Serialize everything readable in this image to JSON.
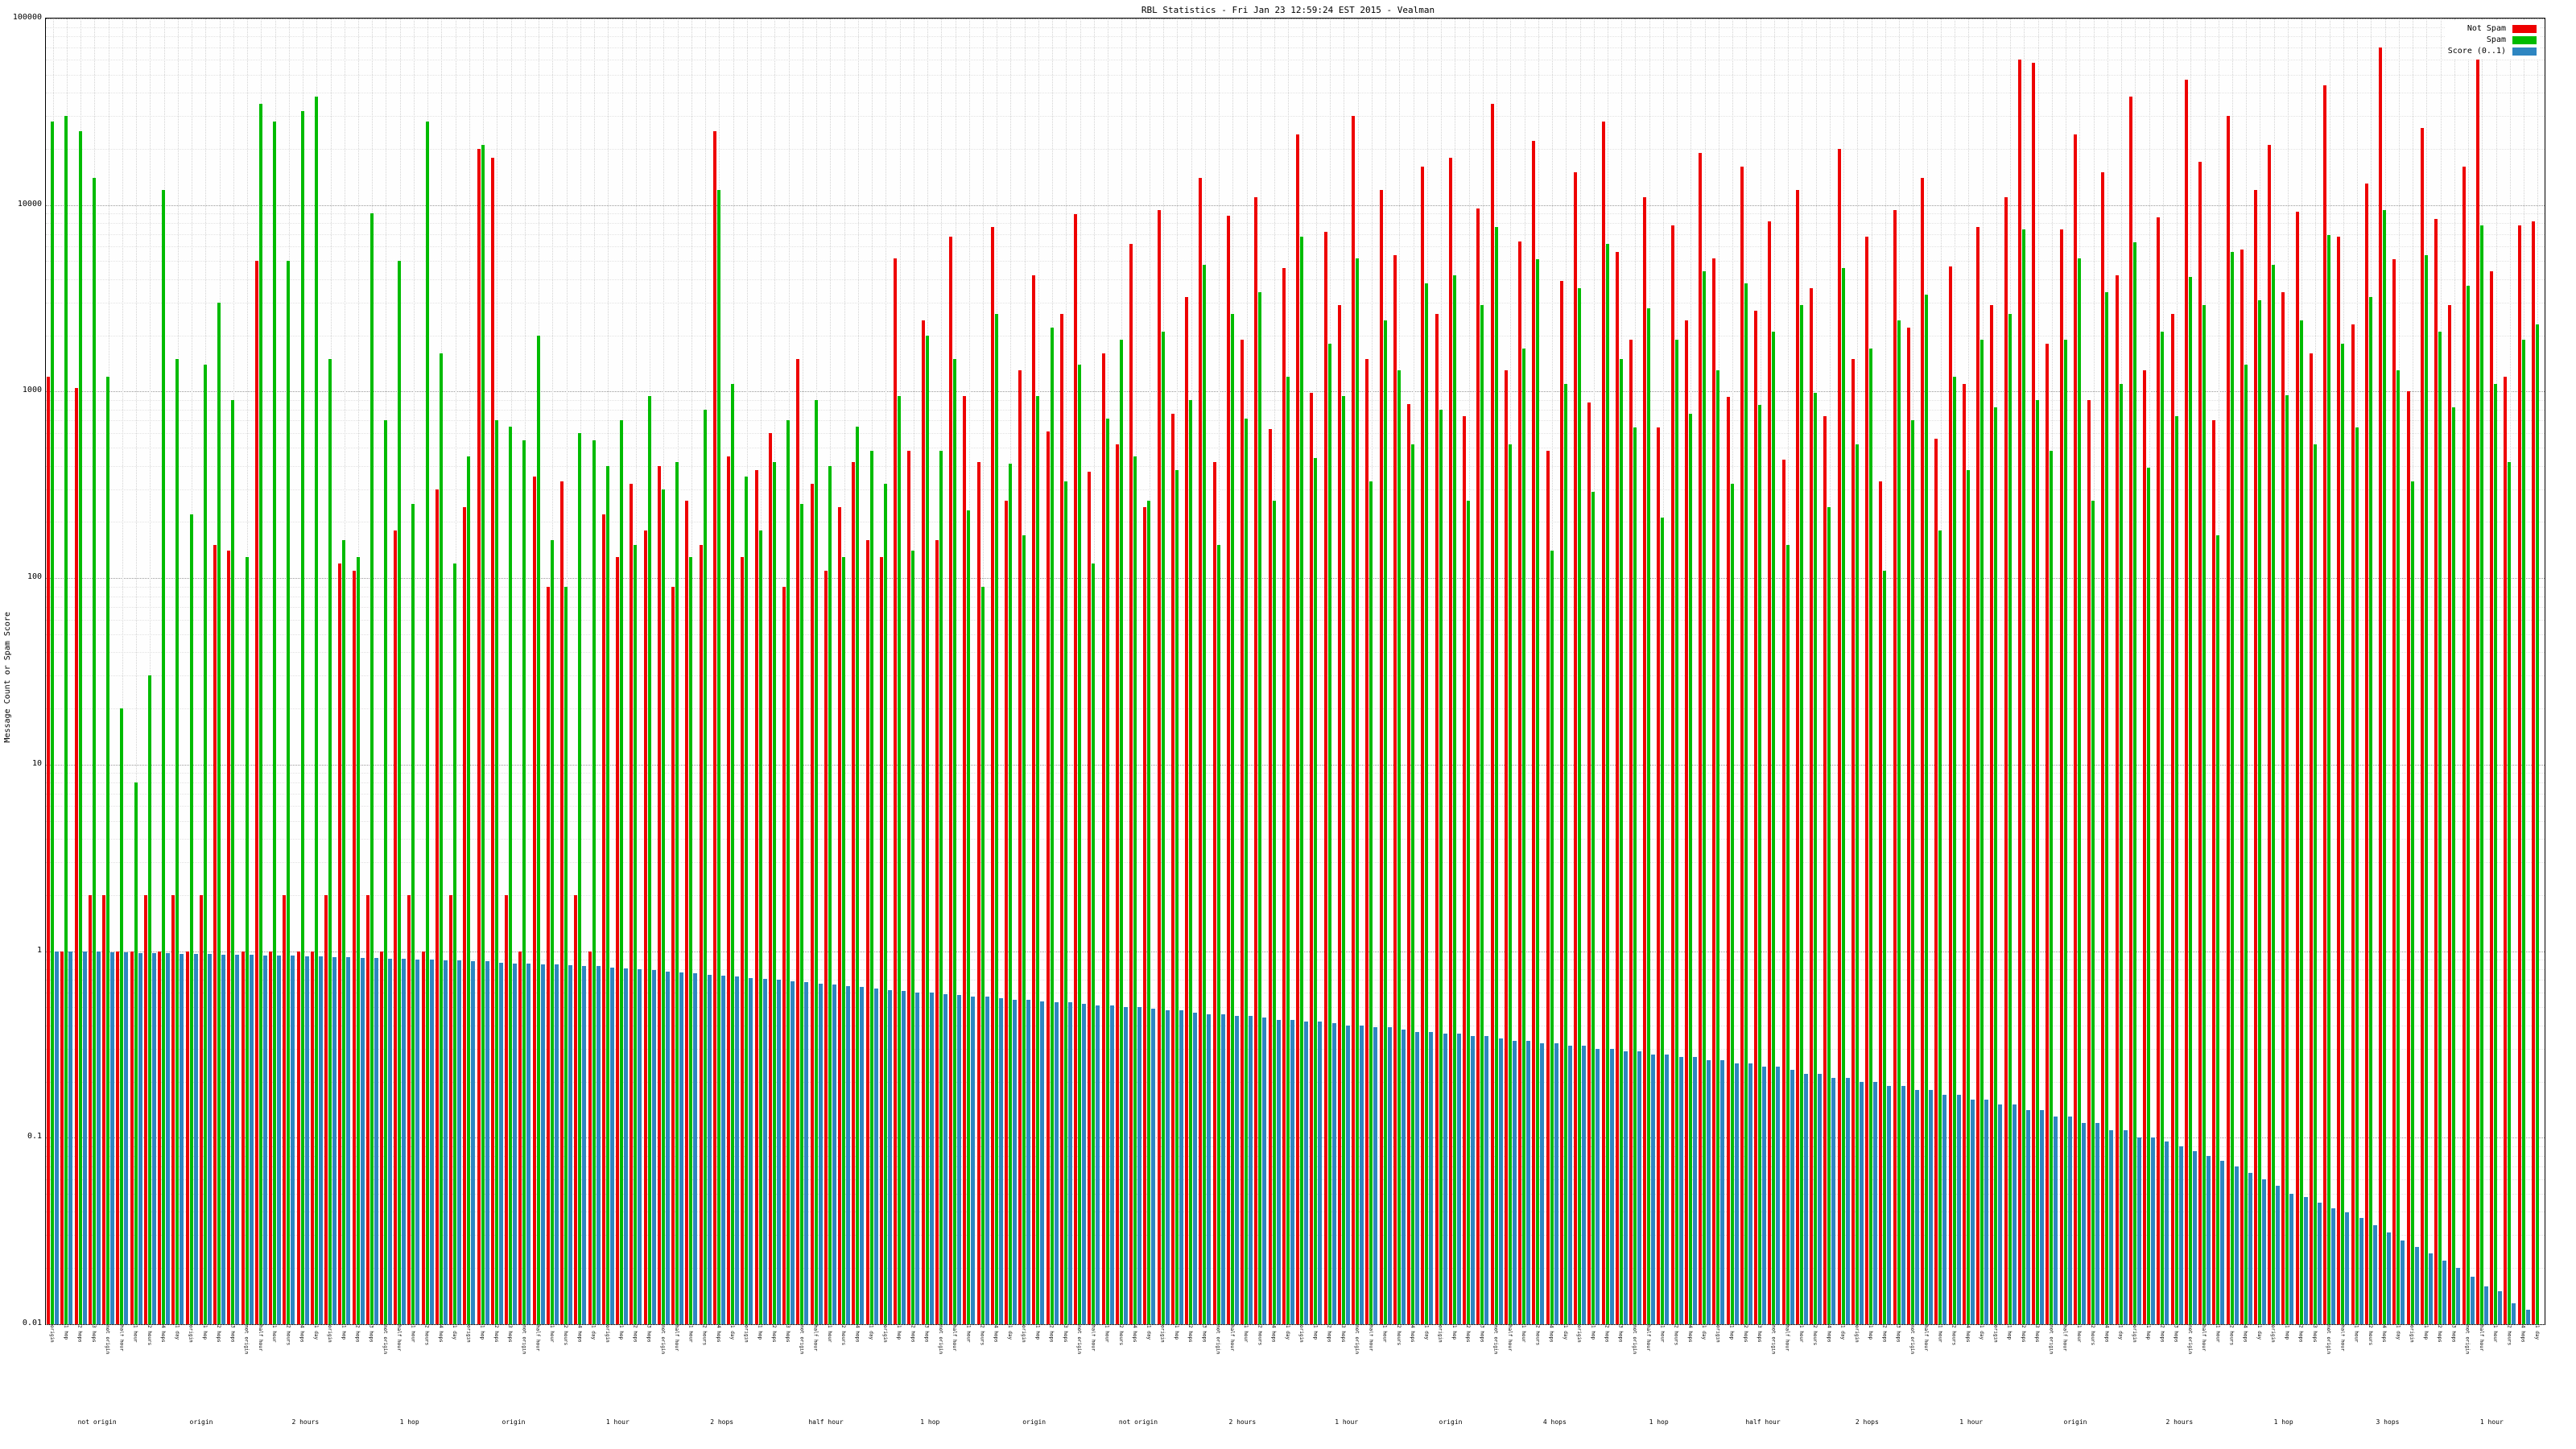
{
  "title": "RBL Statistics - Fri Jan 23 12:59:24 EST 2015 - Vealman",
  "y_axis": {
    "label": "Message Count or Spam Score",
    "ticks": [
      "100000",
      "10000",
      "1000",
      "100",
      "10",
      "1",
      "0.1",
      "0.01"
    ]
  },
  "legend": {
    "items": [
      {
        "label": "Not Spam",
        "color": "#ee0000"
      },
      {
        "label": "Spam",
        "color": "#00bb00"
      },
      {
        "label": "Score (0..1)",
        "color": "#2e86c1"
      }
    ]
  },
  "chart_data": {
    "type": "bar",
    "yscale": "log",
    "ylim": [
      0.01,
      100000
    ],
    "grid": true,
    "legend_position": "top-right",
    "title": "RBL Statistics - Fri Jan 23 12:59:24 EST 2015 - Vealman",
    "xlabel": "",
    "ylabel": "Message Count or Spam Score",
    "categories": [
      "origin",
      "1 hop",
      "2 hops",
      "3 hops",
      "not origin",
      "half hour",
      "1 hour",
      "2 hours",
      "4 hops",
      "1 day",
      "origin",
      "1 hop",
      "2 hops",
      "3 hops",
      "not origin",
      "half hour",
      "1 hour",
      "2 hours",
      "4 hops",
      "1 day",
      "origin",
      "1 hop",
      "2 hops",
      "3 hops",
      "not origin",
      "half hour",
      "1 hour",
      "2 hours",
      "4 hops",
      "1 day",
      "origin",
      "1 hop",
      "2 hops",
      "3 hops",
      "not origin",
      "half hour",
      "1 hour",
      "2 hours",
      "4 hops",
      "1 day",
      "origin",
      "1 hop",
      "2 hops",
      "3 hops",
      "not origin",
      "half hour",
      "1 hour",
      "2 hours",
      "4 hops",
      "1 day",
      "origin",
      "1 hop",
      "2 hops",
      "3 hops",
      "not origin",
      "half hour",
      "1 hour",
      "2 hours",
      "4 hops",
      "1 day",
      "origin",
      "1 hop",
      "2 hops",
      "3 hops",
      "not origin",
      "half hour",
      "1 hour",
      "2 hours",
      "4 hops",
      "1 day",
      "origin",
      "1 hop",
      "2 hops",
      "3 hops",
      "not origin",
      "half hour",
      "1 hour",
      "2 hours",
      "4 hops",
      "1 day",
      "origin",
      "1 hop",
      "2 hops",
      "3 hops",
      "not origin",
      "half hour",
      "1 hour",
      "2 hours",
      "4 hops",
      "1 day",
      "origin",
      "1 hop",
      "2 hops",
      "3 hops",
      "not origin",
      "half hour",
      "1 hour",
      "2 hours",
      "4 hops",
      "1 day",
      "origin",
      "1 hop",
      "2 hops",
      "3 hops",
      "not origin",
      "half hour",
      "1 hour",
      "2 hours",
      "4 hops",
      "1 day",
      "origin",
      "1 hop",
      "2 hops",
      "3 hops",
      "not origin",
      "half hour",
      "1 hour",
      "2 hours",
      "4 hops",
      "1 day",
      "origin",
      "1 hop",
      "2 hops",
      "3 hops",
      "not origin",
      "half hour",
      "1 hour",
      "2 hours",
      "4 hops",
      "1 day",
      "origin",
      "1 hop",
      "2 hops",
      "3 hops",
      "not origin",
      "half hour",
      "1 hour",
      "2 hours",
      "4 hops",
      "1 day",
      "origin",
      "1 hop",
      "2 hops",
      "3 hops",
      "not origin",
      "half hour",
      "1 hour",
      "2 hours",
      "4 hops",
      "1 day",
      "origin",
      "1 hop",
      "2 hops",
      "3 hops",
      "not origin",
      "half hour",
      "1 hour",
      "2 hours",
      "4 hops",
      "1 day",
      "origin",
      "1 hop",
      "2 hops",
      "3 hops",
      "not origin",
      "half hour",
      "1 hour",
      "2 hours",
      "4 hops",
      "1 day",
      "origin",
      "1 hop",
      "2 hops",
      "3 hops",
      "not origin",
      "half hour",
      "1 hour",
      "2 hours",
      "4 hops",
      "1 day"
    ],
    "footer_labels": [
      "not origin",
      "origin",
      "2 hours",
      "1 hop",
      "origin",
      "1 hour",
      "2 hops",
      "half hour",
      "1 hop",
      "origin",
      "not origin",
      "2 hours",
      "1 hour",
      "origin",
      "4 hops",
      "1 hop",
      "half hour",
      "2 hops",
      "1 hour",
      "origin",
      "2 hours",
      "1 hop",
      "3 hops",
      "1 hour"
    ],
    "series": [
      {
        "name": "Not Spam",
        "color": "#ee0000",
        "values": [
          1200,
          1,
          1050,
          2,
          2,
          1,
          1,
          2,
          1,
          2,
          1,
          2,
          150,
          140,
          1,
          5000,
          1,
          2,
          1,
          1,
          2,
          120,
          110,
          2,
          1,
          180,
          2,
          1,
          300,
          2,
          240,
          20000,
          18000,
          2,
          1,
          350,
          90,
          330,
          2,
          1,
          220,
          130,
          320,
          180,
          400,
          90,
          260,
          150,
          25000,
          450,
          130,
          380,
          600,
          90,
          1500,
          320,
          110,
          240,
          420,
          160,
          130,
          5200,
          480,
          2400,
          160,
          6800,
          950,
          420,
          7600,
          260,
          1300,
          4200,
          610,
          2600,
          8900,
          370,
          1600,
          520,
          6200,
          240,
          9400,
          760,
          3200,
          14000,
          420,
          8800,
          1900,
          11000,
          630,
          4600,
          24000,
          980,
          7200,
          2900,
          30000,
          1500,
          12000,
          5400,
          860,
          16000,
          2600,
          18000,
          740,
          9600,
          35000,
          1300,
          6400,
          22000,
          480,
          3900,
          15000,
          870,
          28000,
          5600,
          1900,
          11000,
          640,
          7800,
          2400,
          19000,
          5200,
          940,
          16000,
          2700,
          8200,
          430,
          12000,
          3600,
          740,
          20000,
          1500,
          6800,
          330,
          9400,
          2200,
          14000,
          560,
          4700,
          1100,
          7600,
          2900,
          11000,
          60000,
          58000,
          1800,
          7400,
          24000,
          900,
          15000,
          4200,
          38000,
          1300,
          8600,
          2600,
          47000,
          17000,
          700,
          30000,
          5800,
          12000,
          21000,
          3400,
          9200,
          1600,
          44000,
          6800,
          2300,
          13000,
          70000,
          5100,
          1000,
          26000,
          8400,
          2900,
          16000,
          62000,
          4400,
          1200,
          7800,
          8200
        ]
      },
      {
        "name": "Spam",
        "color": "#00bb00",
        "values": [
          28000,
          30000,
          25000,
          14000,
          1200,
          20,
          8,
          30,
          12000,
          1500,
          220,
          1400,
          3000,
          900,
          130,
          35000,
          28000,
          5000,
          32000,
          38000,
          1500,
          160,
          130,
          9000,
          700,
          5000,
          250,
          28000,
          1600,
          120,
          450,
          21000,
          700,
          650,
          550,
          2000,
          160,
          90,
          600,
          550,
          400,
          700,
          150,
          950,
          300,
          420,
          130,
          800,
          12000,
          1100,
          350,
          180,
          420,
          700,
          250,
          900,
          400,
          130,
          650,
          480,
          320,
          950,
          140,
          2000,
          480,
          1500,
          230,
          90,
          2600,
          410,
          170,
          950,
          2200,
          330,
          1400,
          120,
          720,
          1900,
          450,
          260,
          2100,
          380,
          900,
          4800,
          150,
          2600,
          720,
          3400,
          260,
          1200,
          6800,
          440,
          1800,
          950,
          5200,
          330,
          2400,
          1300,
          520,
          3800,
          800,
          4200,
          260,
          2900,
          7600,
          520,
          1700,
          5100,
          140,
          1100,
          3600,
          290,
          6200,
          1500,
          640,
          2800,
          210,
          1900,
          760,
          4400,
          1300,
          320,
          3800,
          850,
          2100,
          150,
          2900,
          980,
          240,
          4600,
          520,
          1700,
          110,
          2400,
          700,
          3300,
          180,
          1200,
          380,
          1900,
          820,
          2600,
          7400,
          900,
          480,
          1900,
          5200,
          260,
          3400,
          1100,
          6300,
          390,
          2100,
          740,
          4100,
          2900,
          170,
          5600,
          1400,
          3100,
          4800,
          960,
          2400,
          520,
          6900,
          1800,
          640,
          3200,
          9400,
          1300,
          330,
          5400,
          2100,
          820,
          3700,
          7800,
          1100,
          420,
          1900,
          2300
        ]
      },
      {
        "name": "Score (0..1)",
        "color": "#2e86c1",
        "values": [
          1.0,
          1.0,
          1.0,
          1.0,
          0.99,
          0.99,
          0.98,
          0.98,
          0.98,
          0.97,
          0.97,
          0.97,
          0.96,
          0.96,
          0.96,
          0.95,
          0.95,
          0.95,
          0.94,
          0.94,
          0.93,
          0.93,
          0.92,
          0.92,
          0.91,
          0.91,
          0.9,
          0.9,
          0.89,
          0.89,
          0.88,
          0.88,
          0.87,
          0.86,
          0.86,
          0.85,
          0.85,
          0.84,
          0.83,
          0.83,
          0.82,
          0.81,
          0.8,
          0.79,
          0.78,
          0.77,
          0.76,
          0.75,
          0.74,
          0.73,
          0.72,
          0.71,
          0.7,
          0.69,
          0.68,
          0.67,
          0.66,
          0.65,
          0.64,
          0.63,
          0.62,
          0.61,
          0.6,
          0.6,
          0.59,
          0.58,
          0.57,
          0.57,
          0.56,
          0.55,
          0.55,
          0.54,
          0.53,
          0.53,
          0.52,
          0.51,
          0.51,
          0.5,
          0.5,
          0.49,
          0.48,
          0.48,
          0.47,
          0.46,
          0.46,
          0.45,
          0.45,
          0.44,
          0.43,
          0.43,
          0.42,
          0.42,
          0.41,
          0.4,
          0.4,
          0.39,
          0.39,
          0.38,
          0.37,
          0.37,
          0.36,
          0.36,
          0.35,
          0.35,
          0.34,
          0.33,
          0.33,
          0.32,
          0.32,
          0.31,
          0.31,
          0.3,
          0.3,
          0.29,
          0.29,
          0.28,
          0.28,
          0.27,
          0.27,
          0.26,
          0.26,
          0.25,
          0.25,
          0.24,
          0.24,
          0.23,
          0.22,
          0.22,
          0.21,
          0.21,
          0.2,
          0.2,
          0.19,
          0.19,
          0.18,
          0.18,
          0.17,
          0.17,
          0.16,
          0.16,
          0.15,
          0.15,
          0.14,
          0.14,
          0.13,
          0.13,
          0.12,
          0.12,
          0.11,
          0.11,
          0.1,
          0.1,
          0.095,
          0.09,
          0.085,
          0.08,
          0.075,
          0.07,
          0.065,
          0.06,
          0.055,
          0.05,
          0.048,
          0.045,
          0.042,
          0.04,
          0.037,
          0.034,
          0.031,
          0.028,
          0.026,
          0.024,
          0.022,
          0.02,
          0.018,
          0.016,
          0.015,
          0.013,
          0.012,
          0.01
        ]
      }
    ]
  }
}
